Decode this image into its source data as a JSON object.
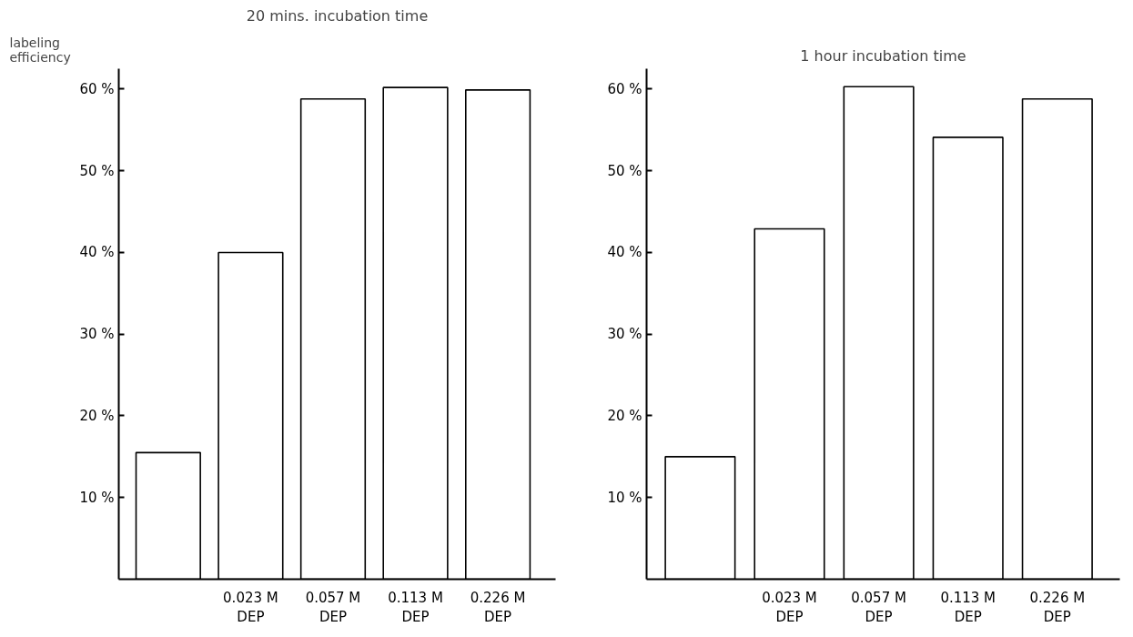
{
  "chart_data": [
    {
      "type": "bar",
      "title": "20 mins. incubation time",
      "ylabel": "labeling\nefficiency",
      "categories": [
        null,
        "0.023 M\nDEP",
        "0.057 M\nDEP",
        "0.113 M\nDEP",
        "0.226 M\nDEP"
      ],
      "values": [
        15.5,
        40,
        58.8,
        60.2,
        59.9
      ],
      "color": "#ffffff",
      "ylim": [
        0,
        62.5
      ],
      "yticks": [
        {
          "value": 10,
          "label": "10 %"
        },
        {
          "value": 20,
          "label": "20 %"
        },
        {
          "value": 30,
          "label": "30 %"
        },
        {
          "value": 40,
          "label": "40 %"
        },
        {
          "value": 50,
          "label": "50 %"
        },
        {
          "value": 60,
          "label": "60 %"
        }
      ],
      "grid": false
    },
    {
      "type": "bar",
      "title": "1 hour incubation time",
      "categories": [
        null,
        "0.023 M\nDEP",
        "0.057 M\nDEP",
        "0.113 M\nDEP",
        "0.226 M\nDEP"
      ],
      "values": [
        15.0,
        42.9,
        60.3,
        54.1,
        58.8
      ],
      "color": "#ffffff",
      "ylim": [
        0,
        62.5
      ],
      "yticks": [
        {
          "value": 10,
          "label": "10 %"
        },
        {
          "value": 20,
          "label": "20 %"
        },
        {
          "value": 30,
          "label": "30 %"
        },
        {
          "value": 40,
          "label": "40 %"
        },
        {
          "value": 50,
          "label": "50 %"
        },
        {
          "value": 60,
          "label": "60 %"
        }
      ],
      "grid": false
    }
  ]
}
